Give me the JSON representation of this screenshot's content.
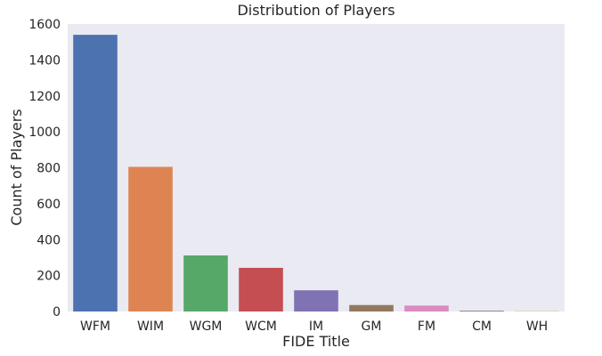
{
  "chart_data": {
    "type": "bar",
    "title": "Distribution of Players",
    "xlabel": "FIDE Title",
    "ylabel": "Count of Players",
    "categories": [
      "WFM",
      "WIM",
      "WGM",
      "WCM",
      "IM",
      "GM",
      "FM",
      "CM",
      "WH"
    ],
    "values": [
      1540,
      805,
      312,
      243,
      118,
      36,
      33,
      5,
      2
    ],
    "colors": [
      "#4c72b0",
      "#dd8452",
      "#55a868",
      "#c44e52",
      "#8172b3",
      "#937860",
      "#da8bc3",
      "#8c8c8c",
      "#ccb974"
    ],
    "ylim": [
      0,
      1600
    ],
    "yticks": [
      0,
      200,
      400,
      600,
      800,
      1000,
      1200,
      1400,
      1600
    ],
    "grid": false,
    "legend": "none",
    "background": "#eaeaf2"
  }
}
